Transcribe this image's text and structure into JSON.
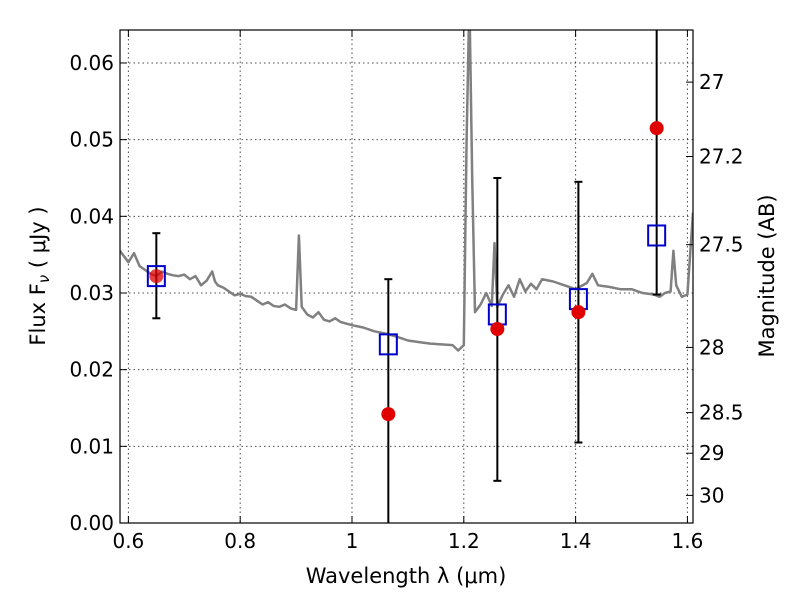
{
  "chart_data": {
    "type": "scatter",
    "xlabel": "Wavelength  λ (μm)",
    "ylabel": "Flux  F",
    "ylabel_sub": "ν",
    "ylabel_unit": " ( μJy )",
    "ylabel_right": "Magnitude (AB)",
    "xlim": [
      0.585,
      1.61
    ],
    "ylim": [
      0.0,
      0.0643
    ],
    "x_ticks": [
      0.6,
      0.8,
      1.0,
      1.2,
      1.4,
      1.6
    ],
    "x_tick_labels": [
      "0.6",
      "0.8",
      "1",
      "1.2",
      "1.4",
      "1.6"
    ],
    "y_ticks": [
      0.0,
      0.01,
      0.02,
      0.03,
      0.04,
      0.05,
      0.06
    ],
    "y_tick_labels": [
      "0.00",
      "0.01",
      "0.02",
      "0.03",
      "0.04",
      "0.05",
      "0.06"
    ],
    "right_ticks": [
      {
        "label": "27",
        "flux": 0.0575
      },
      {
        "label": "27.2",
        "flux": 0.0478
      },
      {
        "label": "27.5",
        "flux": 0.0363
      },
      {
        "label": "28",
        "flux": 0.0229
      },
      {
        "label": "28.5",
        "flux": 0.0144
      },
      {
        "label": "29",
        "flux": 0.0091
      },
      {
        "label": "30",
        "flux": 0.0036
      }
    ],
    "grid": true,
    "series": [
      {
        "kind": "model-spectrum",
        "color": "#808080",
        "x": [
          0.585,
          0.6,
          0.61,
          0.62,
          0.63,
          0.64,
          0.65,
          0.66,
          0.67,
          0.68,
          0.69,
          0.7,
          0.71,
          0.72,
          0.73,
          0.74,
          0.75,
          0.755,
          0.76,
          0.77,
          0.78,
          0.79,
          0.8,
          0.81,
          0.82,
          0.83,
          0.84,
          0.85,
          0.86,
          0.87,
          0.88,
          0.89,
          0.9,
          0.905,
          0.91,
          0.92,
          0.93,
          0.94,
          0.95,
          0.96,
          0.97,
          0.98,
          1.0,
          1.02,
          1.04,
          1.06,
          1.08,
          1.1,
          1.12,
          1.14,
          1.16,
          1.18,
          1.19,
          1.2,
          1.205,
          1.21,
          1.215,
          1.22,
          1.23,
          1.24,
          1.25,
          1.255,
          1.26,
          1.27,
          1.28,
          1.29,
          1.3,
          1.31,
          1.32,
          1.33,
          1.34,
          1.36,
          1.38,
          1.4,
          1.42,
          1.43,
          1.44,
          1.46,
          1.48,
          1.5,
          1.52,
          1.54,
          1.55,
          1.56,
          1.57,
          1.575,
          1.58,
          1.59,
          1.6,
          1.61
        ],
        "y": [
          0.0355,
          0.034,
          0.0352,
          0.0335,
          0.033,
          0.0325,
          0.0322,
          0.0328,
          0.0325,
          0.0323,
          0.0322,
          0.0324,
          0.0318,
          0.0322,
          0.031,
          0.0316,
          0.0328,
          0.0315,
          0.031,
          0.0307,
          0.0302,
          0.0297,
          0.0299,
          0.0296,
          0.0295,
          0.029,
          0.0285,
          0.0288,
          0.0283,
          0.0282,
          0.0285,
          0.028,
          0.0278,
          0.0375,
          0.0282,
          0.0272,
          0.0268,
          0.0275,
          0.0265,
          0.0263,
          0.0267,
          0.0262,
          0.0258,
          0.0255,
          0.025,
          0.0247,
          0.0243,
          0.0238,
          0.0236,
          0.0234,
          0.0233,
          0.0232,
          0.0225,
          0.0232,
          0.05,
          0.0685,
          0.045,
          0.0275,
          0.0285,
          0.03,
          0.0283,
          0.0365,
          0.0282,
          0.0298,
          0.031,
          0.0295,
          0.0318,
          0.0302,
          0.0312,
          0.0305,
          0.0318,
          0.0315,
          0.031,
          0.0305,
          0.0313,
          0.0325,
          0.031,
          0.0308,
          0.0305,
          0.0305,
          0.03,
          0.0298,
          0.0295,
          0.03,
          0.0302,
          0.0355,
          0.031,
          0.0295,
          0.0298,
          0.0405
        ]
      },
      {
        "kind": "model-photometry",
        "marker": "open-square",
        "color": "#0000cc",
        "x": [
          0.65,
          1.065,
          1.26,
          1.405,
          1.545
        ],
        "y": [
          0.0322,
          0.0233,
          0.0272,
          0.0292,
          0.0375
        ]
      },
      {
        "kind": "observed",
        "marker": "filled-circle",
        "color": "#e00000",
        "x": [
          0.65,
          1.065,
          1.26,
          1.405,
          1.545
        ],
        "y": [
          0.0322,
          0.0142,
          0.0253,
          0.0275,
          0.0515
        ],
        "yerr_low": [
          0.0267,
          -0.01,
          0.0055,
          0.0105,
          0.0298
        ],
        "yerr_high": [
          0.0378,
          0.0318,
          0.045,
          0.0445,
          0.07
        ]
      }
    ]
  }
}
